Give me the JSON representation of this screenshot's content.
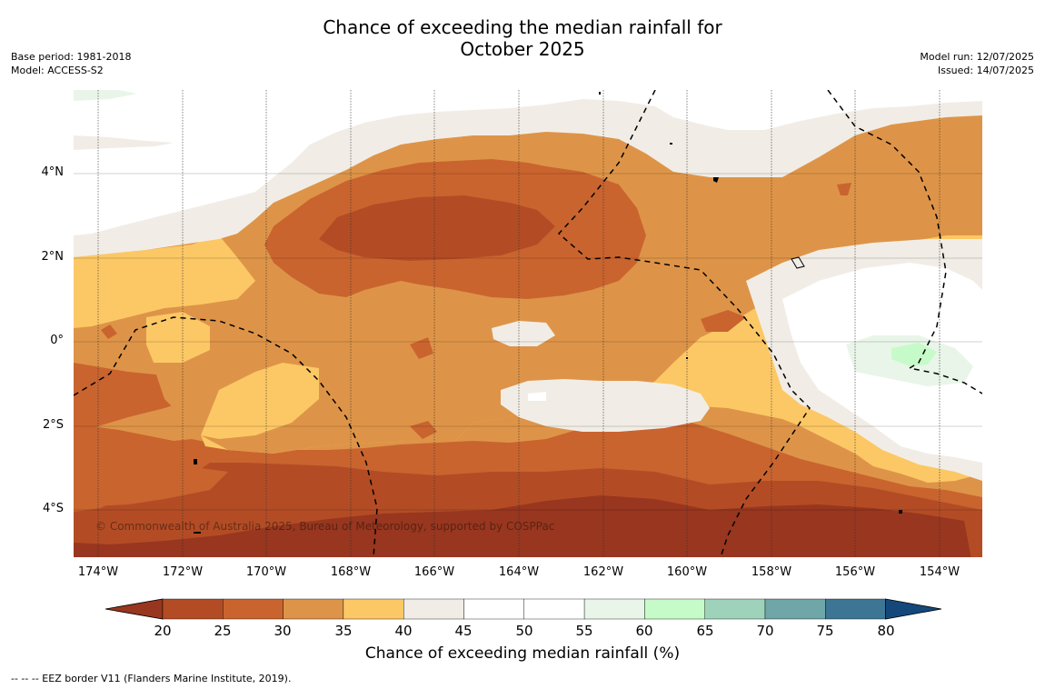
{
  "title_line1": "Chance of exceeding the median rainfall for",
  "title_line2": "October 2025",
  "meta_left": {
    "base_period": "Base period: 1981-2018",
    "model": "Model: ACCESS-S2"
  },
  "meta_right": {
    "model_run": "Model run: 12/07/2025",
    "issued": "Issued: 14/07/2025"
  },
  "copyright": "© Commonwealth of Australia 2025, Bureau of Meteorology, supported by COSPPac",
  "x_ticks": [
    "174°W",
    "172°W",
    "170°W",
    "168°W",
    "166°W",
    "164°W",
    "162°W",
    "160°W",
    "158°W",
    "156°W",
    "154°W"
  ],
  "y_ticks": [
    "4°N",
    "2°N",
    "0°",
    "2°S",
    "4°S"
  ],
  "colorbar": {
    "labels": [
      "20",
      "25",
      "30",
      "35",
      "40",
      "45",
      "50",
      "55",
      "60",
      "65",
      "70",
      "75",
      "80"
    ],
    "colors": [
      "#98361f",
      "#b34c25",
      "#c9642f",
      "#de9448",
      "#fcc865",
      "#f1ede6",
      "#ffffff",
      "#ffffff",
      "#e9f5e9",
      "#c6fbc9",
      "#9ed2ba",
      "#6fa6a8",
      "#3d7595",
      "#15487a"
    ],
    "title": "Chance of exceeding median rainfall (%)"
  },
  "footer": "--  --  -- EEZ border V11 (Flanders Marine Institute, 2019)."
}
